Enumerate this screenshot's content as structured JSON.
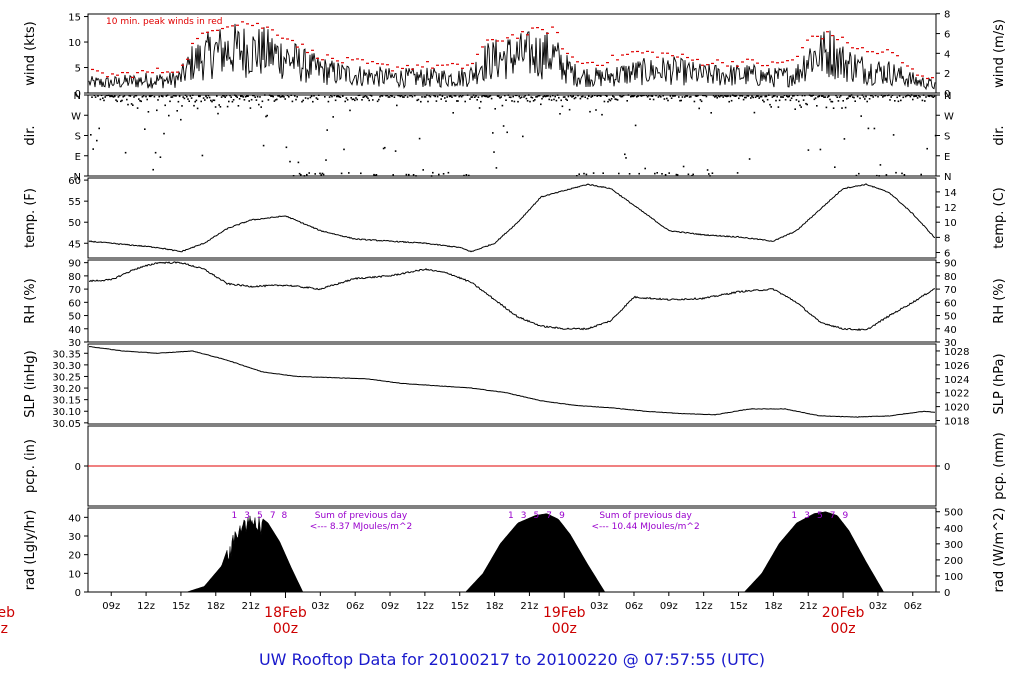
{
  "title": "UW Rooftop Data for 20100217  to  20100220 @ 07:57:55  (UTC)",
  "colors": {
    "trace": "#000000",
    "peak": "#e00000",
    "zero_line": "#e00000",
    "annotation": "#9900cc",
    "date_label": "#cc0000",
    "title": "#1a1acc"
  },
  "time_axis": {
    "start_hour": 7,
    "end_hour": 80,
    "tick_labels": [
      "09z",
      "12z",
      "15z",
      "18z",
      "21z",
      "03z",
      "06z",
      "09z",
      "12z",
      "15z",
      "18z",
      "21z",
      "03z",
      "06z",
      "09z",
      "12z",
      "15z",
      "18z",
      "21z",
      "03z",
      "06z"
    ],
    "tick_hours": [
      9,
      12,
      15,
      18,
      21,
      27,
      30,
      33,
      36,
      39,
      42,
      45,
      51,
      54,
      57,
      60,
      63,
      66,
      69,
      75,
      78
    ],
    "day_labels": [
      {
        "date": "18Feb",
        "hour_label": "00z",
        "hour": 24
      },
      {
        "date": "19Feb",
        "hour_label": "00z",
        "hour": 48
      },
      {
        "date": "20Feb",
        "hour_label": "00z",
        "hour": 72
      }
    ],
    "clipped_left": {
      "date": "eb",
      "hour_label": "z"
    }
  },
  "chart_data": [
    {
      "id": "wind",
      "type": "line",
      "ylabel_left": "wind (kts)",
      "ylabel_right": "wind (m/s)",
      "ylim": [
        0,
        15.5
      ],
      "left_ticks": [
        0,
        5,
        10,
        15
      ],
      "right_ticks": {
        "labels": [
          "0",
          "2",
          "4",
          "6",
          "8"
        ],
        "values": [
          0,
          3.89,
          7.78,
          11.66,
          15.55
        ]
      },
      "annotation": "10 min. peak winds in red",
      "series": [
        {
          "name": "wind",
          "x": [
            7,
            9,
            12,
            14,
            15,
            16,
            18,
            20,
            22,
            24,
            26,
            28,
            30,
            33,
            36,
            39,
            40,
            41,
            43,
            45,
            47,
            48,
            49,
            51,
            54,
            57,
            60,
            62,
            64,
            66,
            68,
            69,
            71,
            72,
            74,
            76,
            78,
            80
          ],
          "y": [
            2,
            2,
            2.5,
            2.5,
            3,
            6,
            8,
            8.5,
            8,
            7,
            5,
            4,
            3.5,
            3,
            3,
            3,
            3.5,
            6,
            7,
            7.5,
            7.5,
            5,
            3.5,
            3,
            4,
            4.5,
            3.5,
            3.5,
            3.5,
            3,
            3.5,
            7,
            8,
            6,
            4.5,
            4,
            2.5,
            1.5
          ]
        },
        {
          "name": "10 min. peak winds",
          "x": [
            7,
            9,
            12,
            14,
            15,
            16,
            18,
            20,
            22,
            24,
            26,
            28,
            30,
            33,
            36,
            39,
            40,
            41,
            43,
            45,
            47,
            48,
            49,
            51,
            54,
            57,
            60,
            62,
            64,
            66,
            68,
            69,
            71,
            72,
            74,
            76,
            78,
            80
          ],
          "y": [
            4,
            3.5,
            4,
            4.5,
            5,
            10,
            13,
            14,
            13,
            11,
            8,
            6.5,
            6,
            5,
            5.5,
            5,
            6,
            9.5,
            11,
            12,
            12.5,
            8,
            6,
            6,
            8,
            7.5,
            6,
            6,
            6,
            5.5,
            7,
            11,
            11.5,
            10,
            8,
            8,
            4,
            3
          ]
        }
      ]
    },
    {
      "id": "dir",
      "type": "scatter",
      "ylabel_left": "dir.",
      "ylabel_right": "dir.",
      "ylim": [
        0,
        360
      ],
      "tick_labels": [
        "N",
        "E",
        "S",
        "W",
        "N"
      ],
      "tick_values": [
        0,
        90,
        180,
        270,
        360
      ]
    },
    {
      "id": "temp",
      "type": "line",
      "ylabel_left": "temp. (F)",
      "ylabel_right": "temp. (C)",
      "ylim": [
        41.5,
        60.5
      ],
      "left_ticks": [
        45,
        50,
        55,
        60
      ],
      "right_ticks": {
        "labels": [
          "6",
          "8",
          "10",
          "12",
          "14"
        ],
        "values": [
          42.8,
          46.4,
          50,
          53.6,
          57.2
        ]
      },
      "series": [
        {
          "name": "temperature",
          "x": [
            7,
            9,
            11,
            13,
            15,
            17,
            19,
            21,
            24,
            27,
            30,
            33,
            36,
            39,
            40,
            42,
            44,
            46,
            48,
            50,
            52,
            54,
            57,
            60,
            63,
            66,
            68,
            70,
            72,
            74,
            76,
            78,
            80
          ],
          "y": [
            45.5,
            45,
            44.5,
            44,
            43,
            45,
            48.5,
            50.5,
            51.5,
            48,
            46,
            45.5,
            45,
            44,
            43,
            45,
            50,
            56,
            57.5,
            59,
            58,
            54,
            48,
            47,
            46.5,
            45.5,
            48,
            53,
            58,
            59,
            57,
            52,
            46
          ]
        }
      ]
    },
    {
      "id": "rh",
      "type": "line",
      "ylabel_left": "RH (%)",
      "ylabel_right": "RH (%)",
      "ylim": [
        30,
        92
      ],
      "left_ticks": [
        30,
        40,
        50,
        60,
        70,
        80,
        90
      ],
      "right_ticks": {
        "labels": [
          "30",
          "40",
          "50",
          "60",
          "70",
          "80",
          "90"
        ],
        "values": [
          30,
          40,
          50,
          60,
          70,
          80,
          90
        ]
      },
      "series": [
        {
          "name": "relative humidity",
          "x": [
            7,
            9,
            11,
            13,
            15,
            17,
            19,
            21,
            24,
            27,
            30,
            33,
            36,
            38,
            40,
            42,
            44,
            46,
            48,
            50,
            52,
            54,
            57,
            60,
            63,
            66,
            68,
            70,
            72,
            74,
            76,
            78,
            80
          ],
          "y": [
            76,
            77,
            85,
            90,
            90,
            85,
            74,
            72,
            73,
            70,
            78,
            80,
            85,
            82,
            75,
            62,
            49,
            42,
            40,
            40,
            46,
            64,
            62,
            63,
            68,
            70,
            60,
            45,
            40,
            39,
            50,
            60,
            71
          ]
        }
      ]
    },
    {
      "id": "slp",
      "type": "line",
      "ylabel_left": "SLP (inHg)",
      "ylabel_right": "SLP (hPa)",
      "ylim": [
        30.045,
        30.39
      ],
      "left_ticks": [
        30.05,
        30.1,
        30.15,
        30.2,
        30.25,
        30.3,
        30.35
      ],
      "left_tick_labels": [
        "30.05",
        "30.10",
        "30.15",
        "30.20",
        "30.25",
        "30.30",
        "30.35"
      ],
      "right_ticks": {
        "labels": [
          "1018",
          "1020",
          "1022",
          "1024",
          "1026",
          "1028"
        ],
        "values": [
          30.06,
          30.12,
          30.18,
          30.24,
          30.3,
          30.36
        ]
      },
      "series": [
        {
          "name": "sea level pressure",
          "x": [
            7,
            10,
            13,
            16,
            19,
            22,
            25,
            28,
            31,
            34,
            37,
            40,
            43,
            46,
            49,
            52,
            55,
            58,
            61,
            64,
            67,
            70,
            73,
            76,
            79,
            80
          ],
          "y": [
            30.38,
            30.36,
            30.35,
            30.36,
            30.32,
            30.27,
            30.25,
            30.245,
            30.24,
            30.22,
            30.21,
            30.2,
            30.18,
            30.145,
            30.125,
            30.115,
            30.1,
            30.09,
            30.085,
            30.11,
            30.11,
            30.08,
            30.075,
            30.08,
            30.1,
            30.095
          ]
        }
      ]
    },
    {
      "id": "pcp",
      "type": "line",
      "ylabel_left": "pcp. (in)",
      "ylabel_right": "pcp. (mm)",
      "ylim": [
        -1,
        1
      ],
      "left_ticks": [
        0
      ],
      "right_ticks": {
        "labels": [
          "0"
        ],
        "values": [
          0
        ]
      },
      "series": [
        {
          "name": "precipitation",
          "x": [
            7,
            80
          ],
          "y": [
            0,
            0
          ]
        }
      ]
    },
    {
      "id": "rad",
      "type": "area",
      "ylabel_left": "rad (Lgly/hr)",
      "ylabel_right": "rad (W/m^2)",
      "ylim": [
        0,
        45
      ],
      "left_ticks": [
        0,
        10,
        20,
        30,
        40
      ],
      "right_ticks": {
        "labels": [
          "0",
          "100",
          "200",
          "300",
          "400",
          "500"
        ],
        "values": [
          0,
          8.6,
          17.2,
          25.8,
          34.4,
          43
        ]
      },
      "annotations": [
        {
          "text": "Sum of previous day",
          "line2": "<--- 8.37 MJoules/m^2",
          "hour": 30.5
        },
        {
          "text": "Sum of previous day",
          "line2": "<--- 10.44 MJoules/m^2",
          "hour": 55
        }
      ],
      "hour_markers": [
        {
          "labels": [
            "1",
            "3",
            "5",
            "7",
            "8"
          ],
          "hours": [
            19.6,
            20.7,
            21.8,
            22.9,
            23.9
          ]
        },
        {
          "labels": [
            "1",
            "3",
            "5",
            "7",
            "9"
          ],
          "hours": [
            43.4,
            44.5,
            45.6,
            46.7,
            47.8
          ]
        },
        {
          "labels": [
            "1",
            "3",
            "5",
            "7",
            "9"
          ],
          "hours": [
            67.8,
            68.9,
            70.0,
            71.1,
            72.2
          ]
        }
      ],
      "series": [
        {
          "name": "day 1",
          "x": [
            15.5,
            17,
            18.5,
            19.5,
            20.5,
            21.5,
            22.5,
            23.5,
            24.5,
            25.5
          ],
          "y": [
            0,
            3,
            14,
            32,
            42,
            42,
            37,
            27,
            13,
            0
          ]
        },
        {
          "name": "day 2",
          "x": [
            39.5,
            41,
            42.5,
            44,
            45.5,
            46.5,
            47.5,
            48.5,
            50,
            51.5
          ],
          "y": [
            0,
            10,
            26,
            37,
            41,
            42,
            39,
            31,
            15,
            0
          ]
        },
        {
          "name": "day 3",
          "x": [
            63.5,
            65,
            66.5,
            68,
            69.5,
            70.5,
            71.5,
            72.5,
            74,
            75.5
          ],
          "y": [
            0,
            10,
            26,
            37,
            42,
            43,
            41,
            33,
            16,
            0
          ]
        }
      ]
    }
  ]
}
